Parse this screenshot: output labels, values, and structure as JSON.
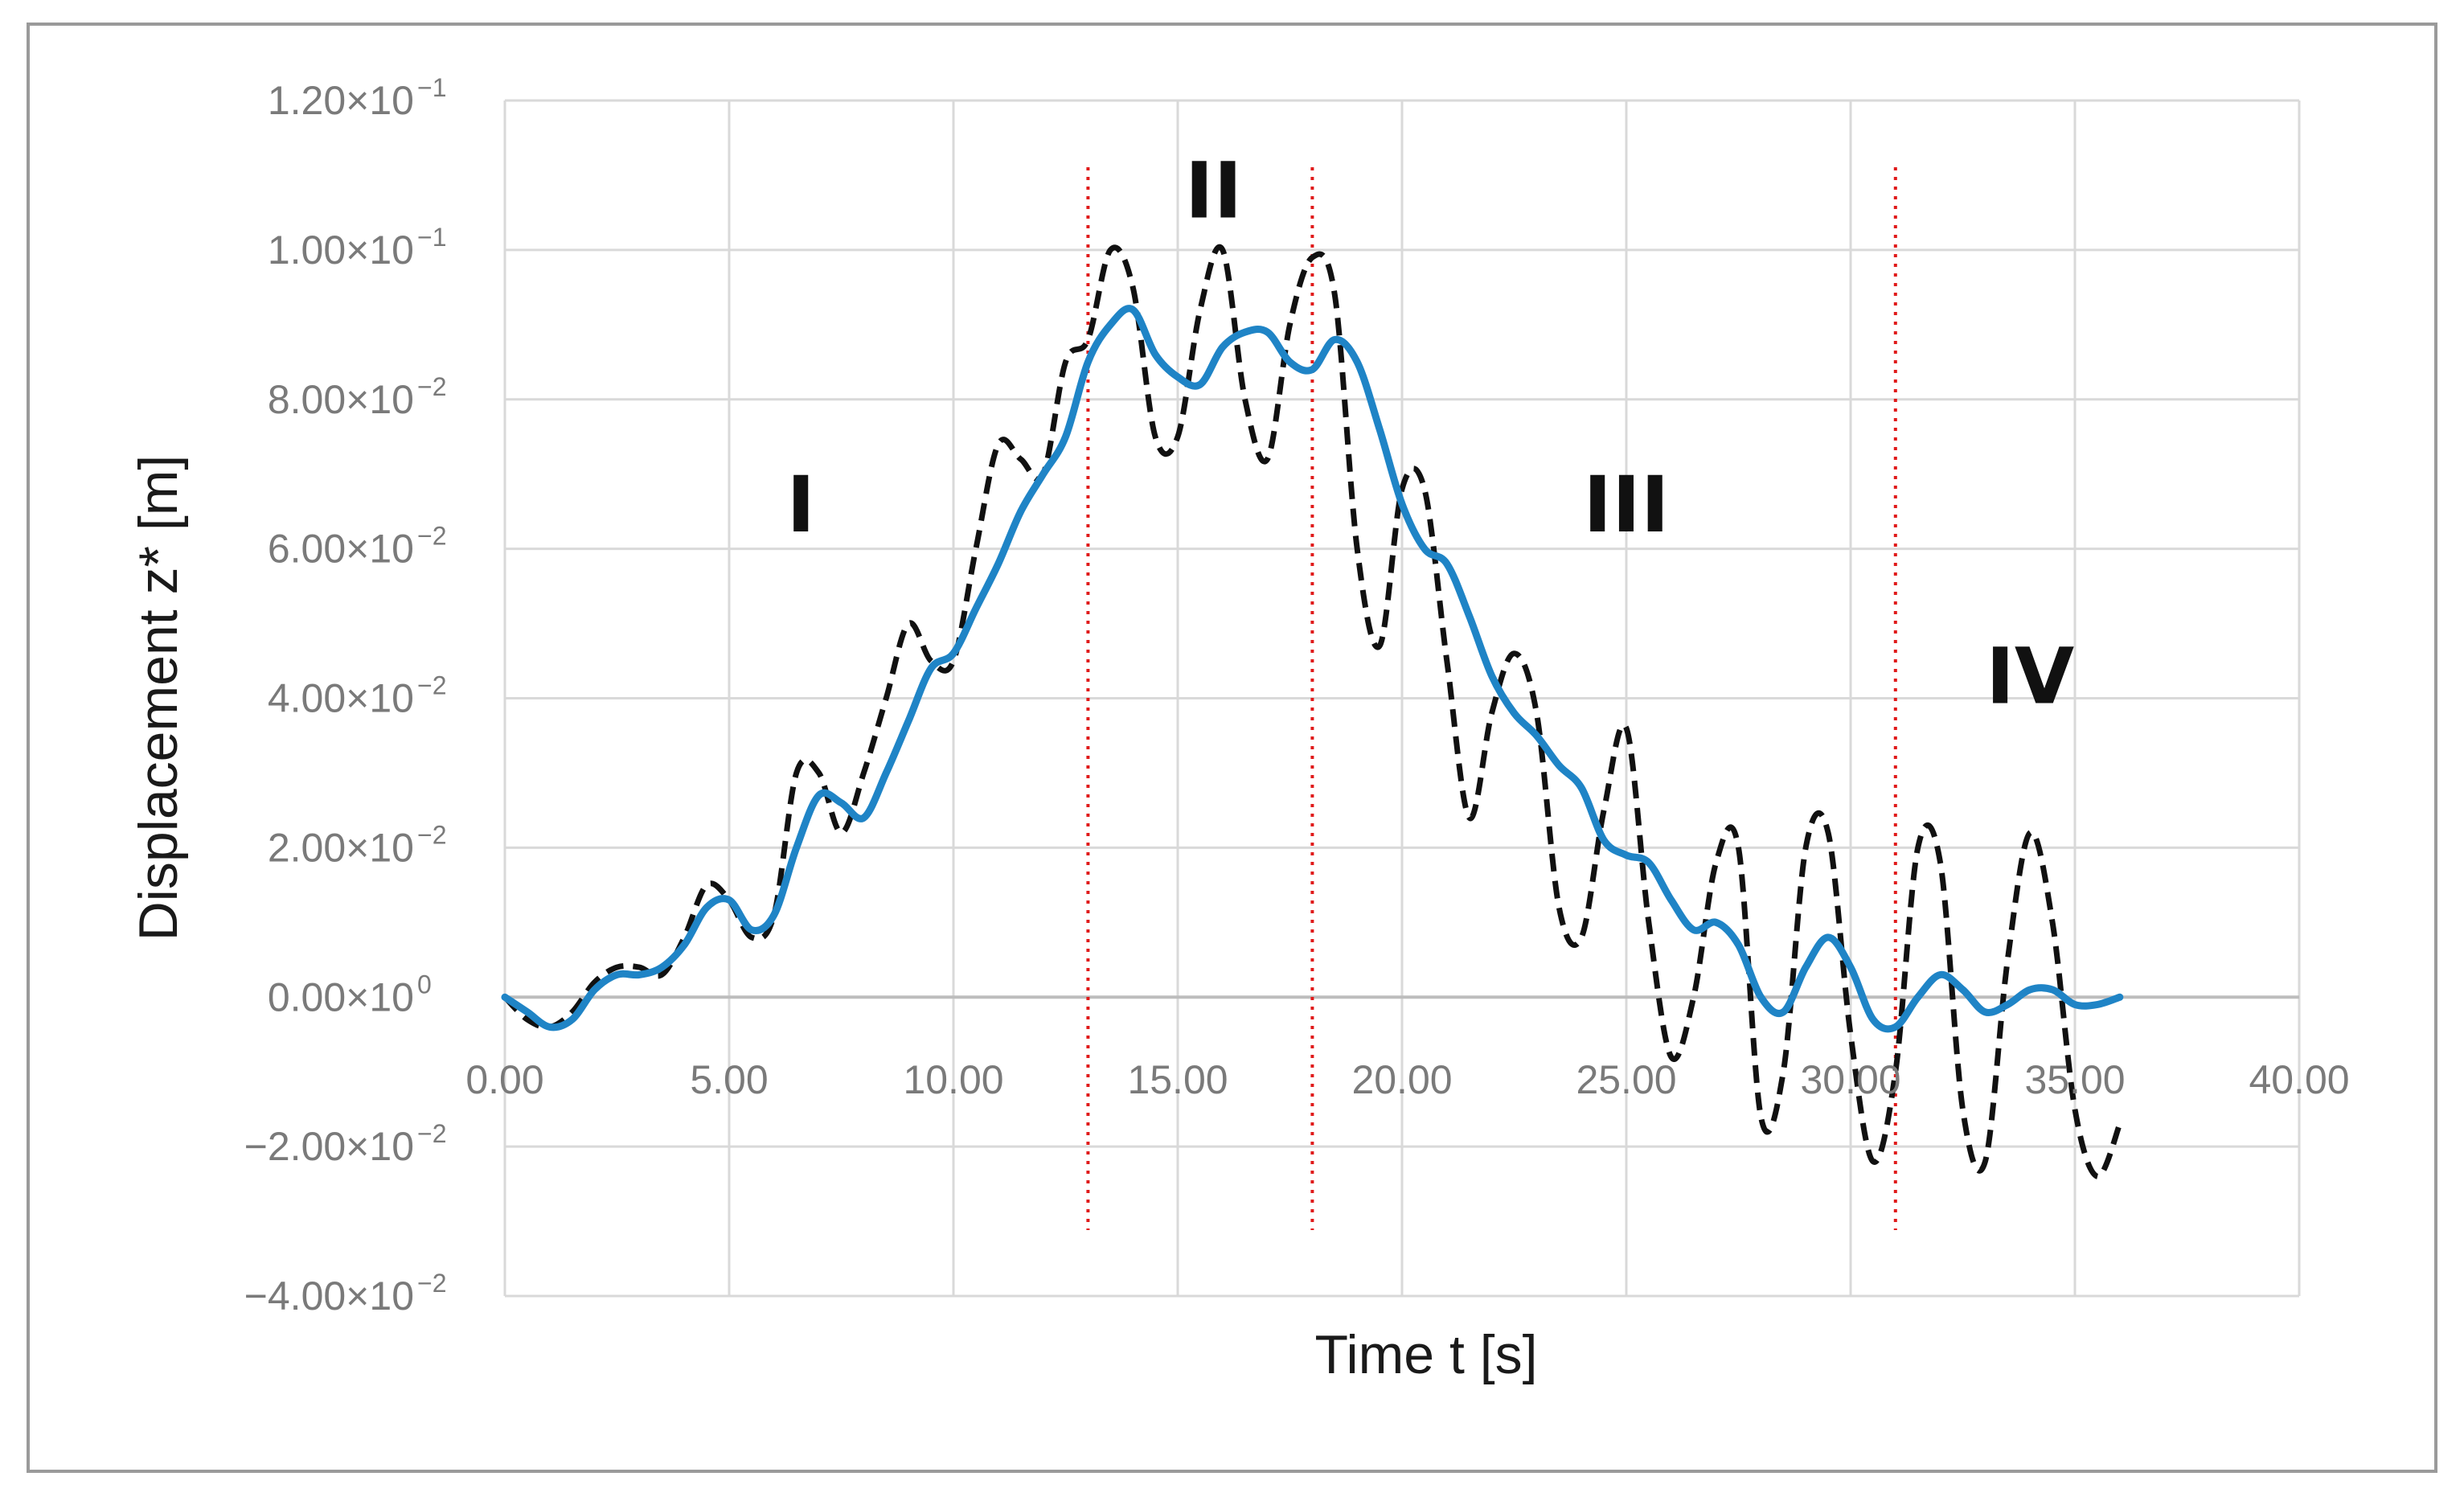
{
  "chart_data": {
    "type": "line",
    "title": "",
    "xlabel": "Time t [s]",
    "ylabel": "Displacement z* [m]",
    "xlim": [
      0,
      40
    ],
    "ylim": [
      -0.04,
      0.12
    ],
    "grid": true,
    "legend": "none",
    "x_ticks": [
      {
        "value": 0,
        "label": "0.00"
      },
      {
        "value": 5,
        "label": "5.00"
      },
      {
        "value": 10,
        "label": "10.00"
      },
      {
        "value": 15,
        "label": "15.00"
      },
      {
        "value": 20,
        "label": "20.00"
      },
      {
        "value": 25,
        "label": "25.00"
      },
      {
        "value": 30,
        "label": "30.00"
      },
      {
        "value": 35,
        "label": "35.00"
      },
      {
        "value": 40,
        "label": "40.00"
      }
    ],
    "y_ticks": [
      {
        "value": 0.12,
        "mantissa": "1.20×10",
        "exp": "−1"
      },
      {
        "value": 0.1,
        "mantissa": "1.00×10",
        "exp": "−1"
      },
      {
        "value": 0.08,
        "mantissa": "8.00×10",
        "exp": "−2"
      },
      {
        "value": 0.06,
        "mantissa": "6.00×10",
        "exp": "−2"
      },
      {
        "value": 0.04,
        "mantissa": "4.00×10",
        "exp": "−2"
      },
      {
        "value": 0.02,
        "mantissa": "2.00×10",
        "exp": "−2"
      },
      {
        "value": 0.0,
        "mantissa": "0.00×10",
        "exp": "0"
      },
      {
        "value": -0.02,
        "mantissa": "−2.00×10",
        "exp": "−2"
      },
      {
        "value": -0.04,
        "mantissa": "−4.00×10",
        "exp": "−2"
      }
    ],
    "region_dividers": [
      13.0,
      18.0,
      31.0
    ],
    "region_labels": [
      {
        "text": "I",
        "x": 6.6,
        "y": 0.066
      },
      {
        "text": "II",
        "x": 15.8,
        "y": 0.108
      },
      {
        "text": "III",
        "x": 25.0,
        "y": 0.066
      },
      {
        "text": "IV",
        "x": 34.0,
        "y": 0.043
      }
    ],
    "series": [
      {
        "style": "solid",
        "color": "#1f84c6",
        "x": [
          0,
          0.5,
          1.0,
          1.5,
          2.0,
          2.5,
          3.0,
          3.5,
          4.0,
          4.5,
          5.0,
          5.5,
          6.0,
          6.5,
          7.0,
          7.5,
          8.0,
          8.5,
          9.0,
          9.5,
          10.0,
          10.5,
          11.0,
          11.5,
          12.0,
          12.5,
          13.0,
          13.5,
          14.0,
          14.5,
          15.0,
          15.5,
          16.0,
          16.5,
          17.0,
          17.5,
          18.0,
          18.5,
          19.0,
          19.5,
          20.0,
          20.5,
          21.0,
          21.5,
          22.0,
          22.5,
          23.0,
          23.5,
          24.0,
          24.5,
          25.0,
          25.5,
          26.0,
          26.5,
          27.0,
          27.5,
          28.0,
          28.5,
          29.0,
          29.5,
          30.0,
          30.5,
          31.0,
          31.5,
          32.0,
          32.5,
          33.0,
          33.5,
          34.0,
          34.5,
          35.0,
          35.5,
          36.0
        ],
        "y": [
          0,
          -0.002,
          -0.004,
          -0.003,
          0.001,
          0.003,
          0.003,
          0.004,
          0.007,
          0.012,
          0.013,
          0.009,
          0.011,
          0.02,
          0.027,
          0.026,
          0.024,
          0.03,
          0.037,
          0.044,
          0.046,
          0.052,
          0.058,
          0.065,
          0.07,
          0.075,
          0.085,
          0.09,
          0.092,
          0.086,
          0.083,
          0.082,
          0.087,
          0.089,
          0.089,
          0.085,
          0.084,
          0.088,
          0.085,
          0.076,
          0.066,
          0.06,
          0.058,
          0.051,
          0.043,
          0.038,
          0.035,
          0.031,
          0.028,
          0.021,
          0.019,
          0.018,
          0.013,
          0.009,
          0.01,
          0.007,
          0.0,
          -0.002,
          0.004,
          0.008,
          0.004,
          -0.003,
          -0.004,
          0.0,
          0.003,
          0.001,
          -0.002,
          -0.001,
          0.001,
          0.001,
          -0.001,
          -0.001,
          0.0
        ]
      },
      {
        "style": "dashed",
        "color": "#111111",
        "x": [
          0,
          0.5,
          1.0,
          1.5,
          2.0,
          2.5,
          3.0,
          3.5,
          4.0,
          4.5,
          5.0,
          5.5,
          6.0,
          6.5,
          7.0,
          7.5,
          8.0,
          8.5,
          9.0,
          9.5,
          10.0,
          10.5,
          11.0,
          11.5,
          12.0,
          12.5,
          13.0,
          13.5,
          14.0,
          14.5,
          15.0,
          15.5,
          16.0,
          16.5,
          17.0,
          17.5,
          18.0,
          18.5,
          19.0,
          19.5,
          20.0,
          20.5,
          21.0,
          21.5,
          22.0,
          22.5,
          23.0,
          23.5,
          24.0,
          24.5,
          25.0,
          25.5,
          26.0,
          26.5,
          27.0,
          27.5,
          28.0,
          28.5,
          29.0,
          29.5,
          30.0,
          30.5,
          31.0,
          31.5,
          32.0,
          32.5,
          33.0,
          33.5,
          34.0,
          34.5,
          35.0,
          35.5,
          36.0
        ],
        "y": [
          0,
          -0.003,
          -0.004,
          -0.002,
          0.002,
          0.004,
          0.004,
          0.003,
          0.008,
          0.015,
          0.013,
          0.008,
          0.011,
          0.03,
          0.03,
          0.022,
          0.03,
          0.04,
          0.05,
          0.045,
          0.045,
          0.06,
          0.074,
          0.072,
          0.07,
          0.085,
          0.088,
          0.1,
          0.095,
          0.075,
          0.075,
          0.092,
          0.1,
          0.08,
          0.072,
          0.09,
          0.099,
          0.094,
          0.06,
          0.047,
          0.068,
          0.068,
          0.045,
          0.024,
          0.038,
          0.046,
          0.038,
          0.012,
          0.008,
          0.025,
          0.036,
          0.01,
          -0.008,
          0.0,
          0.018,
          0.02,
          -0.016,
          -0.01,
          0.02,
          0.022,
          -0.005,
          -0.022,
          -0.01,
          0.02,
          0.018,
          -0.015,
          -0.022,
          0.005,
          0.022,
          0.01,
          -0.015,
          -0.024,
          -0.017
        ]
      }
    ]
  }
}
